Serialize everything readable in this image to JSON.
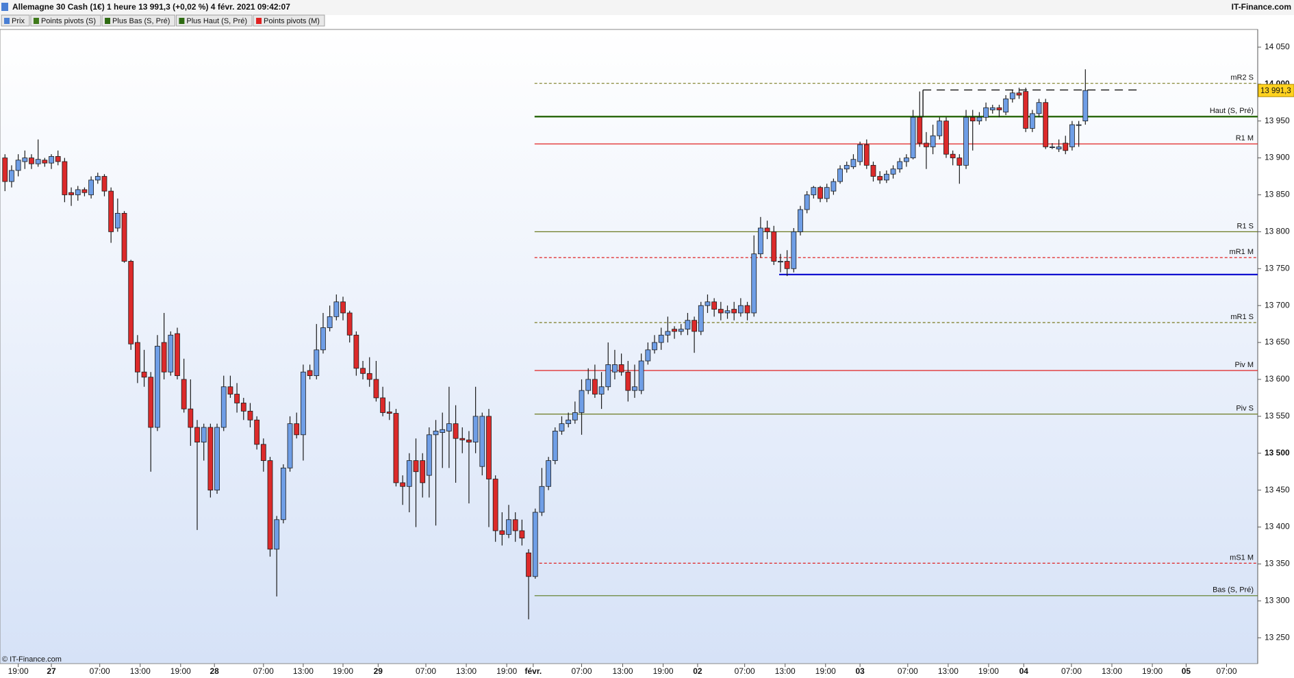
{
  "chart_data": {
    "type": "candlestick",
    "title": "Allemagne 30 Cash (1€) 1 heure 13 991,3 (+0,02 %) 4 févr. 2021 09:42:07",
    "source": "IT-Finance.com",
    "footer": "© IT-Finance.com",
    "legend": [
      {
        "name": "Prix",
        "color": "#4a7fd4"
      },
      {
        "name": "Points pivots (S)",
        "color": "#3f7a1a"
      },
      {
        "name": "Plus Bas (S, Pré)",
        "color": "#2e6b12"
      },
      {
        "name": "Plus Haut (S, Pré)",
        "color": "#2e6b12"
      },
      {
        "name": "Points pivots (M)",
        "color": "#e02020"
      }
    ],
    "up_color": "#6f9ee6",
    "down_color": "#dc2a2a",
    "open": [
      13900,
      13868,
      13883,
      13895,
      13900,
      13892,
      13897,
      13893,
      13902,
      13895,
      13853,
      13850,
      13857,
      13850,
      13870,
      13875,
      13855,
      13805,
      13825,
      13760,
      13650,
      13610,
      13603,
      13535,
      13650,
      13610,
      13662,
      13600,
      13560,
      13535,
      13515,
      13535,
      13450,
      13535,
      13590,
      13580,
      13568,
      13557,
      13545,
      13512,
      13490,
      13370,
      13410,
      13480,
      13540,
      13525,
      13612,
      13605,
      13640,
      13670,
      13685,
      13705,
      13690,
      13660,
      13615,
      13608,
      13600,
      13575,
      13556,
      13554,
      13460,
      13455,
      13490,
      13490,
      13470,
      13525,
      13528,
      13530,
      13540,
      13520,
      13518,
      13515,
      13482,
      13550,
      13465,
      13395,
      13390,
      13410,
      13395,
      13365,
      13333,
      13420,
      13455,
      13490,
      13530,
      13540,
      13545,
      13555,
      13585,
      13600,
      13580,
      13590,
      13610,
      13620,
      13610,
      13585,
      13585,
      13625,
      13640,
      13650,
      13660,
      13668,
      13665,
      13668,
      13680,
      13665,
      13700,
      13705,
      13695,
      13690,
      13695,
      13690,
      13700,
      13690,
      13770,
      13805,
      13800,
      13760,
      13760,
      13750,
      13800,
      13830,
      13850,
      13860,
      13845,
      13855,
      13868,
      13885,
      13888,
      13895,
      13918,
      13890,
      13875,
      13870,
      13878,
      13885,
      13895,
      13900,
      13955,
      13920,
      13915,
      13930,
      13950,
      13905,
      13900,
      13890,
      13955,
      13950,
      13955,
      13965,
      13968,
      13962,
      13980,
      13988,
      13990,
      13940,
      13960,
      13975,
      13915,
      13912,
      13920,
      13915,
      13945,
      13950
    ],
    "high": [
      13905,
      13890,
      13905,
      13910,
      13905,
      13925,
      13900,
      13905,
      13910,
      13900,
      13860,
      13862,
      13860,
      13875,
      13880,
      13878,
      13860,
      13845,
      13828,
      13762,
      13660,
      13640,
      13610,
      13660,
      13690,
      13665,
      13670,
      13628,
      13600,
      13545,
      13540,
      13540,
      13540,
      13605,
      13605,
      13595,
      13575,
      13568,
      13550,
      13520,
      13495,
      13415,
      13485,
      13550,
      13555,
      13620,
      13620,
      13675,
      13690,
      13700,
      13715,
      13712,
      13693,
      13665,
      13625,
      13630,
      13625,
      13590,
      13570,
      13560,
      13470,
      13500,
      13520,
      13500,
      13535,
      13545,
      13555,
      13590,
      13565,
      13535,
      13530,
      13590,
      13555,
      13560,
      13470,
      13420,
      13430,
      13420,
      13410,
      13370,
      13425,
      13480,
      13495,
      13535,
      13550,
      13555,
      13570,
      13600,
      13615,
      13620,
      13610,
      13650,
      13640,
      13635,
      13625,
      13620,
      13635,
      13650,
      13660,
      13670,
      13685,
      13672,
      13675,
      13690,
      13685,
      13705,
      13715,
      13710,
      13705,
      13700,
      13705,
      13710,
      13705,
      13795,
      13820,
      13815,
      13808,
      13770,
      13775,
      13805,
      13835,
      13855,
      13862,
      13862,
      13865,
      13872,
      13890,
      13895,
      13905,
      13922,
      13925,
      13895,
      13882,
      13883,
      13890,
      13900,
      13905,
      13965,
      13990,
      13935,
      13945,
      13955,
      13955,
      13910,
      13905,
      13965,
      13965,
      13962,
      13975,
      13972,
      13972,
      13985,
      13992,
      13995,
      13995,
      13965,
      13980,
      13980,
      13920,
      13925,
      13930,
      13950,
      13950,
      14020
    ],
    "low": [
      13855,
      13860,
      13875,
      13885,
      13885,
      13888,
      13888,
      13885,
      13890,
      13840,
      13835,
      13842,
      13848,
      13845,
      13865,
      13848,
      13785,
      13800,
      13758,
      13640,
      13595,
      13590,
      13475,
      13530,
      13600,
      13605,
      13600,
      13555,
      13510,
      13396,
      13490,
      13440,
      13445,
      13530,
      13575,
      13555,
      13545,
      13535,
      13505,
      13475,
      13360,
      13306,
      13405,
      13475,
      13520,
      13490,
      13600,
      13600,
      13635,
      13665,
      13680,
      13680,
      13650,
      13605,
      13600,
      13590,
      13570,
      13550,
      13545,
      13455,
      13430,
      13420,
      13400,
      13440,
      13440,
      13402,
      13480,
      13480,
      13460,
      13500,
      13432,
      13500,
      13470,
      13400,
      13380,
      13375,
      13385,
      13380,
      13375,
      13275,
      13330,
      13415,
      13450,
      13485,
      13525,
      13535,
      13540,
      13525,
      13580,
      13575,
      13560,
      13585,
      13600,
      13605,
      13570,
      13575,
      13580,
      13620,
      13635,
      13640,
      13650,
      13655,
      13660,
      13660,
      13636,
      13660,
      13690,
      13685,
      13680,
      13682,
      13680,
      13685,
      13680,
      13685,
      13765,
      13790,
      13755,
      13745,
      13740,
      13745,
      13795,
      13825,
      13845,
      13840,
      13840,
      13850,
      13865,
      13880,
      13885,
      13890,
      13885,
      13868,
      13865,
      13866,
      13872,
      13880,
      13888,
      13898,
      13915,
      13885,
      13905,
      13925,
      13900,
      13890,
      13865,
      13885,
      13910,
      13945,
      13950,
      13960,
      13955,
      13958,
      13975,
      13980,
      13935,
      13935,
      13955,
      13912,
      13912,
      13908,
      13905,
      13910,
      13915,
      13945
    ],
    "close": [
      13868,
      13883,
      13897,
      13900,
      13892,
      13898,
      13893,
      13902,
      13895,
      13850,
      13850,
      13857,
      13853,
      13870,
      13875,
      13855,
      13800,
      13825,
      13760,
      13648,
      13610,
      13603,
      13535,
      13645,
      13610,
      13660,
      13605,
      13560,
      13535,
      13515,
      13535,
      13450,
      13535,
      13590,
      13580,
      13568,
      13557,
      13545,
      13512,
      13490,
      13370,
      13410,
      13480,
      13540,
      13525,
      13610,
      13605,
      13640,
      13670,
      13685,
      13705,
      13690,
      13660,
      13615,
      13608,
      13600,
      13575,
      13555,
      13554,
      13460,
      13455,
      13490,
      13475,
      13460,
      13525,
      13530,
      13532,
      13540,
      13520,
      13518,
      13515,
      13550,
      13550,
      13465,
      13395,
      13390,
      13410,
      13395,
      13385,
      13333,
      13420,
      13455,
      13490,
      13530,
      13540,
      13545,
      13555,
      13585,
      13600,
      13580,
      13590,
      13620,
      13620,
      13610,
      13585,
      13590,
      13625,
      13640,
      13650,
      13660,
      13665,
      13665,
      13668,
      13680,
      13665,
      13700,
      13705,
      13695,
      13690,
      13693,
      13690,
      13700,
      13690,
      13770,
      13805,
      13800,
      13760,
      13760,
      13750,
      13800,
      13830,
      13850,
      13860,
      13845,
      13860,
      13868,
      13885,
      13890,
      13898,
      13918,
      13890,
      13875,
      13870,
      13878,
      13885,
      13895,
      13900,
      13955,
      13920,
      13915,
      13930,
      13950,
      13905,
      13900,
      13890,
      13955,
      13950,
      13955,
      13968,
      13968,
      13965,
      13980,
      13988,
      13985,
      13940,
      13960,
      13975,
      13915,
      13915,
      13915,
      13910,
      13945,
      13945,
      13991.3
    ],
    "last_price": {
      "value": 13991.3,
      "label": "13 991,3"
    },
    "levels": [
      {
        "label": "mR2 S",
        "value": 14001,
        "color": "#7a7a20",
        "style": "dashed",
        "start": 79.9
      },
      {
        "label": "Haut (S, Pré)",
        "value": 13956,
        "color": "#2e6b12",
        "style": "thick",
        "start": 79.9
      },
      {
        "label": "R1 M",
        "value": 13919,
        "color": "#e02020",
        "style": "solid",
        "start": 79.9
      },
      {
        "label": "R1 S",
        "value": 13800,
        "color": "#6b7a20",
        "style": "solid",
        "start": 79.9
      },
      {
        "label": "mR1 M",
        "value": 13765,
        "color": "#e02020",
        "style": "dashed",
        "start": 79.9
      },
      {
        "label": "mR1 S",
        "value": 13677,
        "color": "#7a7a20",
        "style": "dashed",
        "start": 79.9
      },
      {
        "label": "Piv M",
        "value": 13612,
        "color": "#e02020",
        "style": "solid",
        "start": 79.9
      },
      {
        "label": "Piv S",
        "value": 13553,
        "color": "#6b7a20",
        "style": "solid",
        "start": 79.9
      },
      {
        "label": "mS1 M",
        "value": 13351,
        "color": "#e02020",
        "style": "dashed",
        "start": 79.9
      },
      {
        "label": "Bas (S, Pré)",
        "value": 13307,
        "color": "#5a7a20",
        "style": "solid",
        "start": 79.9
      }
    ],
    "support": {
      "value": 13742,
      "start": 116.8,
      "color": "#1010d0"
    },
    "range_line": {
      "value": 13992,
      "start": 138.5,
      "end": 171.1,
      "color": "#222222"
    },
    "xlim": [
      -0.75,
      189.0
    ],
    "ylim": [
      13215,
      14074
    ],
    "xticks": [
      {
        "value": 2,
        "label": "19:00"
      },
      {
        "value": 7,
        "label": "27"
      },
      {
        "value": 14.3,
        "label": "07:00"
      },
      {
        "value": 20.4,
        "label": "13:00"
      },
      {
        "value": 26.5,
        "label": "19:00"
      },
      {
        "value": 31.6,
        "label": "28"
      },
      {
        "value": 39,
        "label": "07:00"
      },
      {
        "value": 45,
        "label": "13:00"
      },
      {
        "value": 51,
        "label": "19:00"
      },
      {
        "value": 56.3,
        "label": "29"
      },
      {
        "value": 63.5,
        "label": "07:00"
      },
      {
        "value": 69.6,
        "label": "13:00"
      },
      {
        "value": 75.7,
        "label": "19:00"
      },
      {
        "value": 79.7,
        "label": "févr."
      },
      {
        "value": 87,
        "label": "07:00"
      },
      {
        "value": 93.2,
        "label": "13:00"
      },
      {
        "value": 99.3,
        "label": "19:00"
      },
      {
        "value": 104.5,
        "label": "02"
      },
      {
        "value": 111.6,
        "label": "07:00"
      },
      {
        "value": 117.7,
        "label": "13:00"
      },
      {
        "value": 123.8,
        "label": "19:00"
      },
      {
        "value": 129,
        "label": "03"
      },
      {
        "value": 136.2,
        "label": "07:00"
      },
      {
        "value": 142.3,
        "label": "13:00"
      },
      {
        "value": 148.4,
        "label": "19:00"
      },
      {
        "value": 153.7,
        "label": "04"
      },
      {
        "value": 160.9,
        "label": "07:00"
      },
      {
        "value": 167,
        "label": "13:00"
      },
      {
        "value": 173.1,
        "label": "19:00"
      },
      {
        "value": 178.2,
        "label": "05"
      },
      {
        "value": 184.3,
        "label": "07:00"
      }
    ],
    "yticks": [
      {
        "value": 14050,
        "label": "14 050"
      },
      {
        "value": 14000,
        "label": "14 000"
      },
      {
        "value": 13950,
        "label": "13 950"
      },
      {
        "value": 13900,
        "label": "13 900"
      },
      {
        "value": 13850,
        "label": "13 850"
      },
      {
        "value": 13800,
        "label": "13 800"
      },
      {
        "value": 13750,
        "label": "13 750"
      },
      {
        "value": 13700,
        "label": "13 700"
      },
      {
        "value": 13650,
        "label": "13 650"
      },
      {
        "value": 13600,
        "label": "13 600"
      },
      {
        "value": 13550,
        "label": "13 550"
      },
      {
        "value": 13500,
        "label": "13 500"
      },
      {
        "value": 13450,
        "label": "13 450"
      },
      {
        "value": 13400,
        "label": "13 400"
      },
      {
        "value": 13350,
        "label": "13 350"
      },
      {
        "value": 13300,
        "label": "13 300"
      },
      {
        "value": 13250,
        "label": "13 250"
      }
    ]
  }
}
